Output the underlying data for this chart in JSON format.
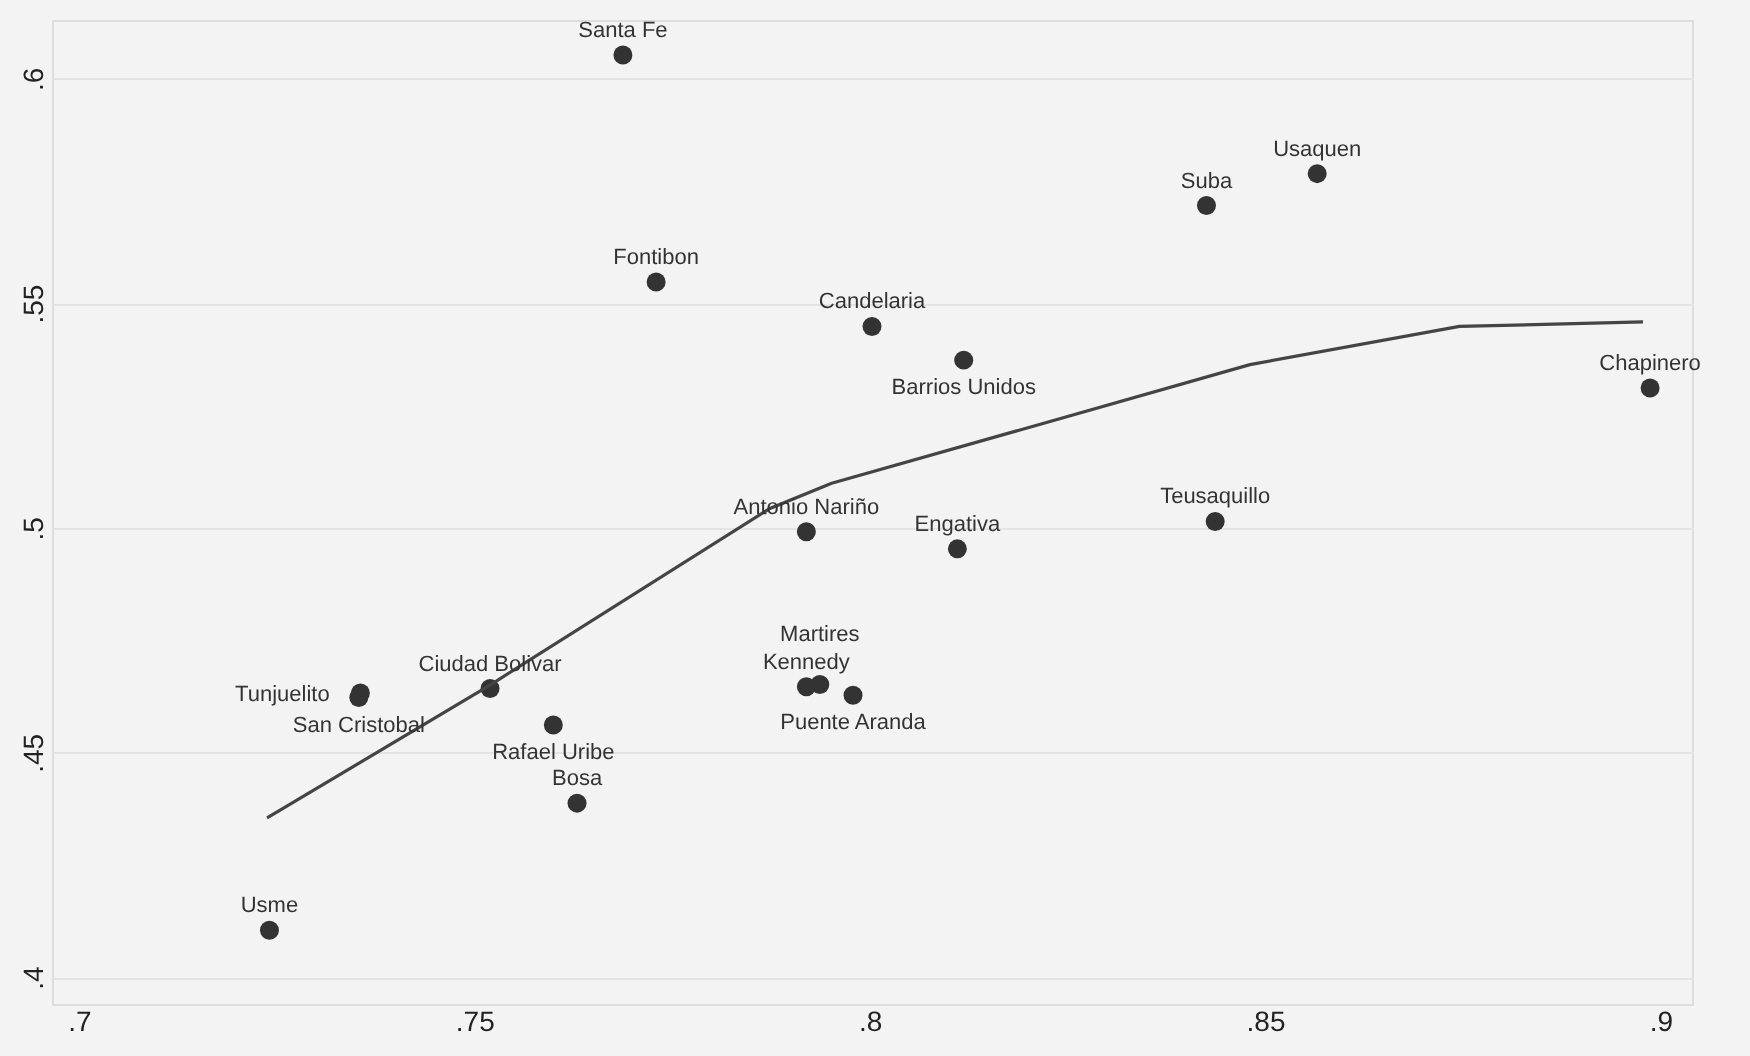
{
  "chart_data": {
    "type": "scatter",
    "series": [
      {
        "color": "#333333",
        "x": [
          0.7688,
          0.773,
          0.8003,
          0.8119,
          0.8426,
          0.8566,
          0.8987,
          0.8437,
          0.8111,
          0.792,
          0.792,
          0.7937,
          0.7979,
          0.763,
          0.76,
          0.752,
          0.7354,
          0.7356,
          0.7241
        ],
        "values": [
          0.6052,
          0.5547,
          0.5448,
          0.5373,
          0.5717,
          0.5788,
          0.5311,
          0.5014,
          0.4953,
          0.4991,
          0.4646,
          0.4651,
          0.4627,
          0.4387,
          0.4561,
          0.4642,
          0.4622,
          0.4632,
          0.4104
        ]
      },
      {
        "type": "line",
        "marker": "none",
        "color": "#444444",
        "x": [
          0.7238,
          0.7521,
          0.7873,
          0.7952,
          0.8217,
          0.8481,
          0.8746,
          0.8978
        ],
        "values": [
          0.4354,
          0.4651,
          0.5042,
          0.5099,
          0.5231,
          0.5363,
          0.5448,
          0.5458
        ]
      }
    ],
    "annotations": [
      {
        "text": "Santa Fe",
        "x": 0.7688,
        "y": 0.6052
      },
      {
        "text": "Fontibon",
        "x": 0.773,
        "y": 0.5547
      },
      {
        "text": "Candelaria",
        "x": 0.8003,
        "y": 0.5448
      },
      {
        "text": "Barrios Unidos",
        "x": 0.8119,
        "y": 0.5373
      },
      {
        "text": "Suba",
        "x": 0.8426,
        "y": 0.5717
      },
      {
        "text": "Usaquen",
        "x": 0.8566,
        "y": 0.5788
      },
      {
        "text": "Chapinero",
        "x": 0.8987,
        "y": 0.5311
      },
      {
        "text": "Teusaquillo",
        "x": 0.8437,
        "y": 0.5014
      },
      {
        "text": "Engativa",
        "x": 0.8111,
        "y": 0.4953
      },
      {
        "text": "Antonio Nariño",
        "x": 0.792,
        "y": 0.4991
      },
      {
        "text": "Kennedy",
        "x": 0.792,
        "y": 0.4646
      },
      {
        "text": "Martires",
        "x": 0.7937,
        "y": 0.4651
      },
      {
        "text": "Puente Aranda",
        "x": 0.7979,
        "y": 0.4627
      },
      {
        "text": "Bosa",
        "x": 0.763,
        "y": 0.4387
      },
      {
        "text": "Rafael Uribe",
        "x": 0.76,
        "y": 0.4561
      },
      {
        "text": "Ciudad Bolivar",
        "x": 0.752,
        "y": 0.4642
      },
      {
        "text": "San Cristobal",
        "x": 0.7354,
        "y": 0.4622
      },
      {
        "text": "Tunjuelito",
        "x": 0.7356,
        "y": 0.4632
      },
      {
        "text": "Usme",
        "x": 0.7241,
        "y": 0.4104
      }
    ],
    "xlim": [
      0.6966,
      0.904
    ],
    "ylim": [
      0.394,
      0.613
    ],
    "xticks": [
      {
        "value": 0.7,
        "label": ".7"
      },
      {
        "value": 0.75,
        "label": ".75"
      },
      {
        "value": 0.8,
        "label": ".8"
      },
      {
        "value": 0.85,
        "label": ".85"
      },
      {
        "value": 0.9,
        "label": ".9"
      }
    ],
    "yticks": [
      {
        "value": 0.4,
        "label": ".4"
      },
      {
        "value": 0.45,
        "label": ".45"
      },
      {
        "value": 0.5,
        "label": ".5"
      },
      {
        "value": 0.55,
        "label": ".55"
      },
      {
        "value": 0.6,
        "label": ".6"
      }
    ],
    "grid": "y",
    "marker": "circle"
  }
}
